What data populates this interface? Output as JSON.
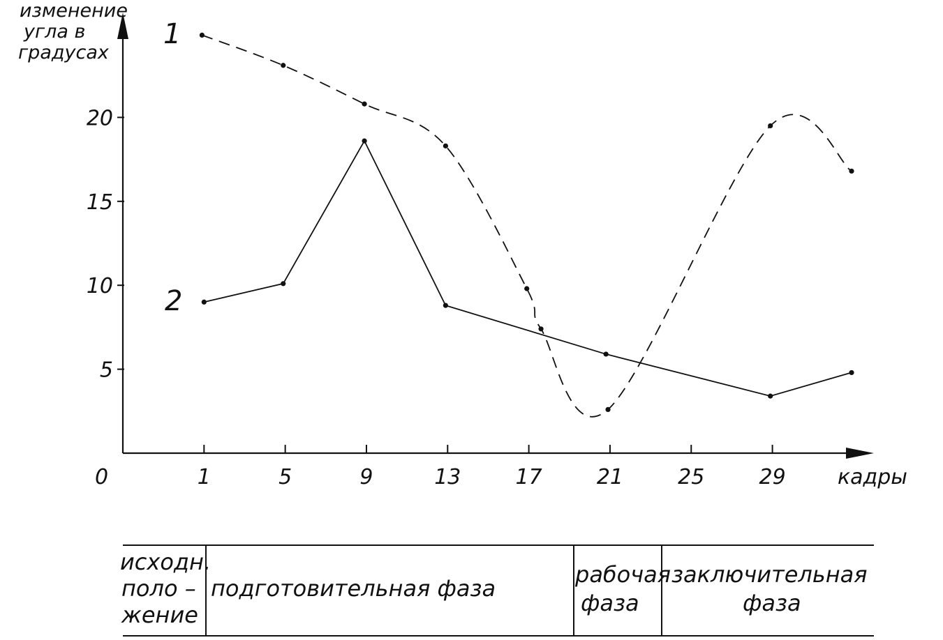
{
  "chart_data": {
    "type": "line",
    "ylabel": [
      "изменение",
      "угла в",
      "градусах"
    ],
    "xlabel": "кадры",
    "origin_label": "0",
    "x_ticks": [
      1,
      5,
      9,
      13,
      17,
      21,
      25,
      29
    ],
    "y_ticks": [
      5,
      10,
      15,
      20
    ],
    "xlim": [
      -3,
      34
    ],
    "ylim": [
      0,
      25
    ],
    "series": [
      {
        "name": "1",
        "style": "dashed",
        "x": [
          0.9,
          4.9,
          8.9,
          12.9,
          16.9,
          17.6,
          20.9,
          28.9,
          32.9
        ],
        "y": [
          24.9,
          23.1,
          20.8,
          18.3,
          9.8,
          7.4,
          2.6,
          19.5,
          16.8
        ]
      },
      {
        "name": "2",
        "style": "solid",
        "x": [
          1.0,
          4.9,
          8.9,
          12.9,
          20.8,
          28.9,
          32.9
        ],
        "y": [
          9.0,
          10.1,
          18.6,
          8.8,
          5.9,
          3.4,
          4.8
        ]
      }
    ]
  },
  "phases": {
    "initial": [
      "исходн.",
      "поло –",
      "жение"
    ],
    "preparatory": "подготовительная фаза",
    "working": [
      "рабочая",
      "фаза"
    ],
    "final": [
      "заключительная",
      "фаза"
    ]
  },
  "colors": {
    "ink": "#111111",
    "paper": "#ffffff"
  }
}
